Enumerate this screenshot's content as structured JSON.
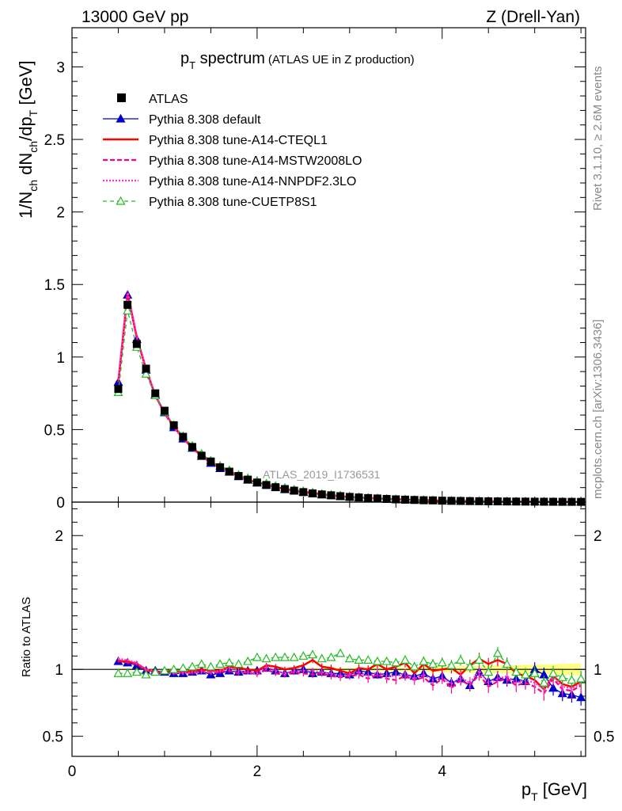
{
  "header": {
    "left": "13000 GeV pp",
    "right": "Z (Drell-Yan)"
  },
  "title": {
    "main_pre": "p",
    "main_sub": "T",
    "main_post": " spectrum",
    "small": "(ATLAS UE in Z production)"
  },
  "side_labels": {
    "top": "Rivet 3.1.10, ≥ 2.6M events",
    "bottom": "mcplots.cern.ch [arXiv:1306.3436]"
  },
  "watermark": "ATLAS_2019_I1736531",
  "axes": {
    "ylabel_main": {
      "p1": "1/N",
      "s1": "ch",
      "p2": " dN",
      "s2": "ch",
      "p3": "/dp",
      "s3": "T",
      "p4": " [GeV]"
    },
    "ylabel_ratio": "Ratio to ATLAS",
    "xlabel": {
      "p1": "p",
      "s1": "T",
      "p2": " [GeV]"
    }
  },
  "colors": {
    "atlas": "#000000",
    "default": "#0000cc",
    "cteql1": "#ff0000",
    "mstw": "#ff0080",
    "nnpdf": "#ff33cc",
    "cuetp": "#22bb22",
    "band": "#ffff66"
  },
  "chart_data": {
    "type": "line",
    "x_range": [
      0,
      5.55
    ],
    "y_range_main": [
      0,
      3.27
    ],
    "y_range_ratio": [
      0.35,
      2.25
    ],
    "x_ticks": [
      "0",
      "2",
      "4"
    ],
    "y_ticks_main": [
      "0",
      "0.5",
      "1",
      "1.5",
      "2",
      "2.5",
      "3"
    ],
    "y_ticks_ratio": [
      "0.5",
      "1",
      "2"
    ],
    "legend_position": "top-left",
    "data": {
      "name": "ATLAS",
      "x": [
        0.5,
        0.6,
        0.7,
        0.8,
        0.9,
        1.0,
        1.1,
        1.2,
        1.3,
        1.4,
        1.5,
        1.6,
        1.7,
        1.8,
        1.9,
        2.0,
        2.1,
        2.2,
        2.3,
        2.4,
        2.5,
        2.6,
        2.7,
        2.8,
        2.9,
        3.0,
        3.1,
        3.2,
        3.3,
        3.4,
        3.5,
        3.6,
        3.7,
        3.8,
        3.9,
        4.0,
        4.1,
        4.2,
        4.3,
        4.4,
        4.5,
        4.6,
        4.7,
        4.8,
        4.9,
        5.0,
        5.1,
        5.2,
        5.3,
        5.4,
        5.5
      ],
      "y": [
        0.78,
        1.36,
        1.09,
        0.92,
        0.75,
        0.63,
        0.53,
        0.45,
        0.38,
        0.32,
        0.28,
        0.24,
        0.21,
        0.18,
        0.155,
        0.135,
        0.118,
        0.103,
        0.09,
        0.079,
        0.069,
        0.06,
        0.053,
        0.047,
        0.041,
        0.036,
        0.032,
        0.028,
        0.025,
        0.022,
        0.019,
        0.017,
        0.015,
        0.013,
        0.012,
        0.01,
        0.009,
        0.008,
        0.007,
        0.0063,
        0.0056,
        0.005,
        0.0044,
        0.0039,
        0.0035,
        0.0031,
        0.0028,
        0.0025,
        0.0022,
        0.002,
        0.0018
      ]
    },
    "series": [
      {
        "name": "Pythia 8.308 default",
        "ratio": [
          1.06,
          1.05,
          1.03,
          0.99,
          0.99,
          0.98,
          0.97,
          0.97,
          0.98,
          0.99,
          0.96,
          0.97,
          0.99,
          0.98,
          0.99,
          0.99,
          1.01,
          0.99,
          0.97,
          0.99,
          1.0,
          0.97,
          0.98,
          0.97,
          0.97,
          0.96,
          0.99,
          0.98,
          0.96,
          0.97,
          0.98,
          0.96,
          0.95,
          0.97,
          0.93,
          0.95,
          0.9,
          0.93,
          0.88,
          0.98,
          0.91,
          0.94,
          0.92,
          0.93,
          0.91,
          1.0,
          0.96,
          0.86,
          0.82,
          0.81,
          0.79
        ]
      },
      {
        "name": "Pythia 8.308 tune-A14-CTEQL1",
        "ratio": [
          1.06,
          1.06,
          1.04,
          1.0,
          0.98,
          0.98,
          0.99,
          0.98,
          0.99,
          1.0,
          0.99,
          0.99,
          1.02,
          1.01,
          1.0,
          0.99,
          1.03,
          1.02,
          1.0,
          1.01,
          1.03,
          1.07,
          1.02,
          1.01,
          0.99,
          0.97,
          1.01,
          1.0,
          1.04,
          1.0,
          1.02,
          1.05,
          0.97,
          1.04,
          0.99,
          1.0,
          1.01,
          0.96,
          1.03,
          1.08,
          1.04,
          1.07,
          1.04,
          0.97,
          0.95,
          0.92,
          0.85,
          0.95,
          0.89,
          0.87,
          0.91
        ]
      },
      {
        "name": "Pythia 8.308 tune-A14-MSTW2008LO",
        "ratio": [
          1.07,
          1.05,
          1.04,
          0.99,
          0.98,
          0.97,
          0.97,
          0.98,
          0.97,
          0.99,
          0.97,
          0.98,
          0.99,
          0.97,
          0.98,
          0.96,
          1.0,
          0.97,
          0.96,
          0.98,
          0.97,
          0.96,
          0.97,
          0.95,
          0.94,
          0.95,
          0.96,
          0.93,
          0.96,
          0.93,
          0.92,
          0.95,
          0.92,
          0.94,
          0.88,
          0.93,
          0.86,
          0.92,
          0.88,
          0.96,
          0.87,
          0.91,
          0.93,
          0.88,
          0.9,
          0.87,
          0.82,
          0.93,
          0.85,
          0.84,
          0.88
        ]
      },
      {
        "name": "Pythia 8.308 tune-A14-NNPDF2.3LO",
        "ratio": [
          1.08,
          1.07,
          1.05,
          1.0,
          0.99,
          0.98,
          0.97,
          0.97,
          0.98,
          0.98,
          0.98,
          0.99,
          1.01,
          0.99,
          0.98,
          0.97,
          1.02,
          0.99,
          0.97,
          0.99,
          0.99,
          0.99,
          0.98,
          0.97,
          0.95,
          0.96,
          0.98,
          0.95,
          0.98,
          0.95,
          0.95,
          0.97,
          0.93,
          0.96,
          0.92,
          0.94,
          0.89,
          0.94,
          0.9,
          0.99,
          0.9,
          0.93,
          0.95,
          0.9,
          0.92,
          0.9,
          0.85,
          0.95,
          0.87,
          0.86,
          0.89
        ]
      },
      {
        "name": "Pythia 8.308 tune-CUETP8S1",
        "ratio": [
          0.97,
          0.97,
          0.98,
          0.96,
          0.98,
          0.99,
          1.0,
          1.01,
          1.02,
          1.04,
          1.02,
          1.04,
          1.05,
          1.04,
          1.06,
          1.09,
          1.08,
          1.09,
          1.09,
          1.09,
          1.1,
          1.11,
          1.08,
          1.09,
          1.12,
          1.08,
          1.07,
          1.07,
          1.06,
          1.06,
          1.05,
          1.07,
          1.02,
          1.06,
          1.04,
          1.05,
          1.03,
          1.07,
          1.02,
          1.07,
          0.98,
          1.12,
          1.04,
          0.98,
          0.96,
          0.97,
          0.9,
          0.97,
          0.94,
          0.92,
          0.93
        ]
      }
    ]
  }
}
